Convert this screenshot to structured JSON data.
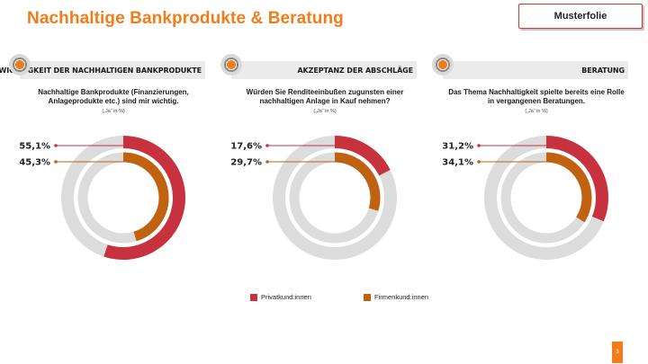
{
  "title": "Nachhaltige Bankprodukte & Beratung",
  "tag": "Musterfolie",
  "colors": {
    "accent": "#f07d1a",
    "private": "#c8323f",
    "business": "#c0620f",
    "track": "#dcdcdc"
  },
  "panels": [
    {
      "header": "Wichtigkeit der nachhaltigen Bankprodukte",
      "question": "Nachhaltige Bankprodukte (Finanzierungen, Anlageprodukte etc.) sind mir wichtig.",
      "unit": "(„Ja“ in %)"
    },
    {
      "header": "Akzeptanz der Abschläge",
      "question": "Würden Sie Renditeeinbußen zugunsten einer nachhaltigen Anlage in Kauf nehmen?",
      "unit": "(„Ja“ in %)"
    },
    {
      "header": "Beratung",
      "question": "Das Thema Nachhaltigkeit spielte bereits eine Rolle in vergangenen Beratungen.",
      "unit": "(„Ja“ in %)"
    }
  ],
  "legend": {
    "private": "Privatkund:innen",
    "business": "Firmenkund:innen"
  },
  "page_number": "3",
  "chart_data": [
    {
      "type": "donut",
      "title": "Wichtigkeit der nachhaltigen Bankprodukte",
      "series": [
        {
          "name": "Privatkund:innen",
          "value": 55.1,
          "label": "55,1%"
        },
        {
          "name": "Firmenkund:innen",
          "value": 45.3,
          "label": "45,3%"
        }
      ]
    },
    {
      "type": "donut",
      "title": "Akzeptanz der Abschläge",
      "series": [
        {
          "name": "Privatkund:innen",
          "value": 17.6,
          "label": "17,6%"
        },
        {
          "name": "Firmenkund:innen",
          "value": 29.7,
          "label": "29,7%"
        }
      ]
    },
    {
      "type": "donut",
      "title": "Beratung",
      "series": [
        {
          "name": "Privatkund:innen",
          "value": 31.2,
          "label": "31,2%"
        },
        {
          "name": "Firmenkund:innen",
          "value": 34.1,
          "label": "34,1%"
        }
      ]
    }
  ]
}
